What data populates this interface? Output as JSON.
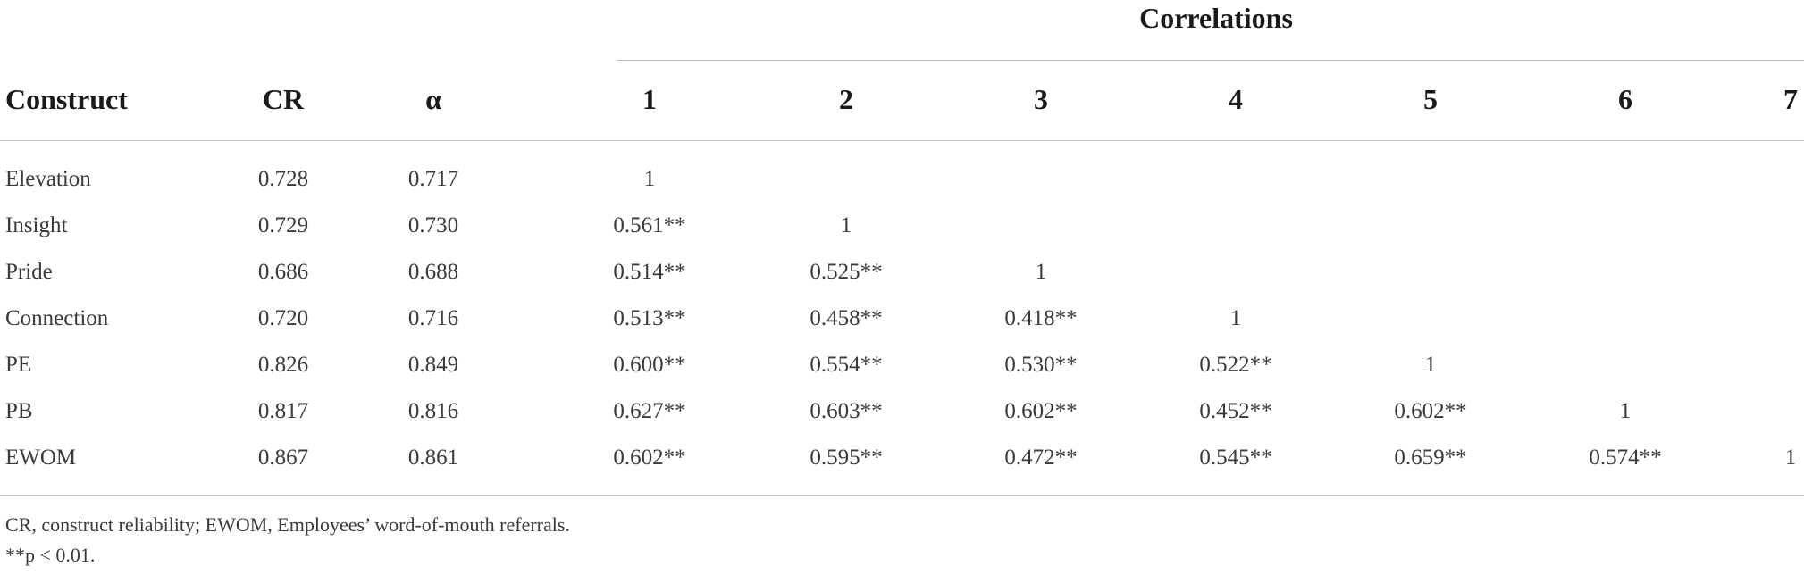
{
  "table": {
    "group_header": "Correlations",
    "headers": {
      "construct": "Construct",
      "cr": "CR",
      "alpha": "α",
      "cols": [
        "1",
        "2",
        "3",
        "4",
        "5",
        "6",
        "7"
      ]
    },
    "rows": [
      {
        "name": "Elevation",
        "cr": "0.728",
        "alpha": "0.717",
        "corr": [
          "1"
        ]
      },
      {
        "name": "Insight",
        "cr": "0.729",
        "alpha": "0.730",
        "corr": [
          "0.561**",
          "1"
        ]
      },
      {
        "name": "Pride",
        "cr": "0.686",
        "alpha": "0.688",
        "corr": [
          "0.514**",
          "0.525**",
          "1"
        ]
      },
      {
        "name": "Connection",
        "cr": "0.720",
        "alpha": "0.716",
        "corr": [
          "0.513**",
          "0.458**",
          "0.418**",
          "1"
        ]
      },
      {
        "name": "PE",
        "cr": "0.826",
        "alpha": "0.849",
        "corr": [
          "0.600**",
          "0.554**",
          "0.530**",
          "0.522**",
          "1"
        ]
      },
      {
        "name": "PB",
        "cr": "0.817",
        "alpha": "0.816",
        "corr": [
          "0.627**",
          "0.603**",
          "0.602**",
          "0.452**",
          "0.602**",
          "1"
        ]
      },
      {
        "name": "EWOM",
        "cr": "0.867",
        "alpha": "0.861",
        "corr": [
          "0.602**",
          "0.595**",
          "0.472**",
          "0.545**",
          "0.659**",
          "0.574**",
          "1"
        ]
      }
    ],
    "footnotes": [
      "CR, construct reliability; EWOM, Employees’ word-of-mouth referrals.",
      "**p < 0.01."
    ]
  }
}
